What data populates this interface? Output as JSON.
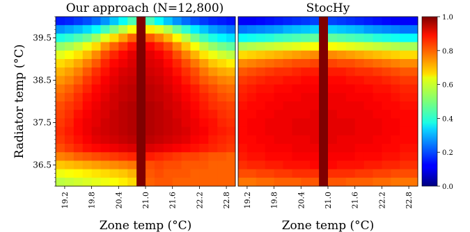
{
  "figure": {
    "shared_ylabel": "Radiator temp (°C)",
    "colorbar": {
      "range": [
        0.0,
        1.0
      ],
      "ticks": [
        "0.0",
        "0.2",
        "0.4",
        "0.6",
        "0.8",
        "1.0"
      ],
      "colormap": "jet"
    }
  },
  "chart_data": [
    {
      "type": "heatmap",
      "title": "Our approach (N=12,800)",
      "xlabel": "Zone temp (°C)",
      "ylabel": "Radiator temp (°C)",
      "x_tick_labels": [
        "19.2",
        "19.8",
        "20.4",
        "21.0",
        "21.6",
        "22.2",
        "22.8"
      ],
      "y_tick_labels": [
        "39.5",
        "38.5",
        "37.5",
        "36.5"
      ],
      "xlim": [
        19.0,
        23.0
      ],
      "ylim": [
        36.0,
        40.0
      ],
      "zlim": [
        0.0,
        1.0
      ],
      "grid_rows": 20,
      "grid_cols": 20,
      "highlight_column_x": 21.0,
      "highlight_column_value": 1.0,
      "values": [
        [
          0.15,
          0.16,
          0.18,
          0.2,
          0.23,
          0.27,
          0.32,
          0.38,
          0.45,
          1.0,
          0.45,
          0.38,
          0.32,
          0.27,
          0.23,
          0.2,
          0.18,
          0.16,
          0.15,
          0.14
        ],
        [
          0.27,
          0.29,
          0.31,
          0.34,
          0.38,
          0.44,
          0.5,
          0.56,
          0.62,
          1.0,
          0.64,
          0.6,
          0.55,
          0.48,
          0.42,
          0.36,
          0.32,
          0.28,
          0.26,
          0.24
        ],
        [
          0.4,
          0.42,
          0.45,
          0.48,
          0.53,
          0.6,
          0.66,
          0.72,
          0.78,
          1.0,
          0.79,
          0.75,
          0.7,
          0.63,
          0.56,
          0.49,
          0.44,
          0.4,
          0.37,
          0.35
        ],
        [
          0.52,
          0.54,
          0.57,
          0.61,
          0.66,
          0.73,
          0.78,
          0.82,
          0.86,
          1.0,
          0.87,
          0.84,
          0.8,
          0.74,
          0.68,
          0.62,
          0.56,
          0.52,
          0.49,
          0.47
        ],
        [
          0.6,
          0.62,
          0.65,
          0.69,
          0.74,
          0.8,
          0.84,
          0.87,
          0.9,
          1.0,
          0.9,
          0.88,
          0.85,
          0.8,
          0.75,
          0.7,
          0.65,
          0.61,
          0.58,
          0.56
        ],
        [
          0.66,
          0.68,
          0.71,
          0.75,
          0.79,
          0.84,
          0.87,
          0.89,
          0.91,
          1.0,
          0.91,
          0.9,
          0.87,
          0.84,
          0.8,
          0.76,
          0.72,
          0.68,
          0.66,
          0.64
        ],
        [
          0.7,
          0.72,
          0.75,
          0.79,
          0.83,
          0.86,
          0.89,
          0.91,
          0.92,
          1.0,
          0.92,
          0.91,
          0.89,
          0.86,
          0.83,
          0.8,
          0.76,
          0.73,
          0.71,
          0.7
        ],
        [
          0.73,
          0.75,
          0.78,
          0.82,
          0.85,
          0.88,
          0.9,
          0.92,
          0.93,
          1.0,
          0.93,
          0.92,
          0.9,
          0.88,
          0.85,
          0.82,
          0.79,
          0.77,
          0.75,
          0.74
        ],
        [
          0.76,
          0.78,
          0.81,
          0.84,
          0.87,
          0.89,
          0.91,
          0.93,
          0.94,
          1.0,
          0.94,
          0.93,
          0.91,
          0.89,
          0.87,
          0.85,
          0.82,
          0.8,
          0.78,
          0.77
        ],
        [
          0.78,
          0.8,
          0.83,
          0.86,
          0.88,
          0.9,
          0.92,
          0.93,
          0.94,
          1.0,
          0.94,
          0.93,
          0.92,
          0.9,
          0.88,
          0.86,
          0.84,
          0.82,
          0.8,
          0.79
        ],
        [
          0.8,
          0.82,
          0.84,
          0.87,
          0.89,
          0.91,
          0.92,
          0.94,
          0.95,
          1.0,
          0.95,
          0.94,
          0.92,
          0.91,
          0.89,
          0.87,
          0.85,
          0.83,
          0.82,
          0.81
        ],
        [
          0.81,
          0.83,
          0.86,
          0.88,
          0.9,
          0.91,
          0.93,
          0.94,
          0.95,
          1.0,
          0.95,
          0.94,
          0.93,
          0.91,
          0.9,
          0.88,
          0.86,
          0.85,
          0.83,
          0.82
        ],
        [
          0.82,
          0.84,
          0.87,
          0.89,
          0.9,
          0.92,
          0.93,
          0.94,
          0.95,
          1.0,
          0.95,
          0.94,
          0.93,
          0.92,
          0.9,
          0.89,
          0.87,
          0.86,
          0.84,
          0.83
        ],
        [
          0.83,
          0.85,
          0.87,
          0.89,
          0.91,
          0.92,
          0.93,
          0.94,
          0.95,
          1.0,
          0.95,
          0.94,
          0.93,
          0.92,
          0.91,
          0.89,
          0.88,
          0.86,
          0.85,
          0.84
        ],
        [
          0.82,
          0.84,
          0.86,
          0.88,
          0.9,
          0.91,
          0.92,
          0.93,
          0.94,
          1.0,
          0.94,
          0.93,
          0.92,
          0.91,
          0.9,
          0.88,
          0.87,
          0.85,
          0.84,
          0.83
        ],
        [
          0.8,
          0.82,
          0.84,
          0.86,
          0.87,
          0.88,
          0.89,
          0.9,
          0.91,
          1.0,
          0.91,
          0.9,
          0.89,
          0.88,
          0.87,
          0.86,
          0.85,
          0.84,
          0.83,
          0.82
        ],
        [
          0.75,
          0.76,
          0.78,
          0.79,
          0.8,
          0.81,
          0.82,
          0.83,
          0.84,
          1.0,
          0.85,
          0.84,
          0.83,
          0.82,
          0.81,
          0.81,
          0.8,
          0.79,
          0.79,
          0.78
        ],
        [
          0.68,
          0.69,
          0.7,
          0.71,
          0.72,
          0.73,
          0.74,
          0.75,
          0.76,
          1.0,
          0.8,
          0.81,
          0.8,
          0.8,
          0.79,
          0.79,
          0.79,
          0.78,
          0.78,
          0.78
        ],
        [
          0.61,
          0.62,
          0.63,
          0.64,
          0.65,
          0.66,
          0.67,
          0.68,
          0.7,
          1.0,
          0.79,
          0.8,
          0.79,
          0.79,
          0.79,
          0.78,
          0.78,
          0.78,
          0.78,
          0.78
        ],
        [
          0.56,
          0.57,
          0.58,
          0.59,
          0.6,
          0.61,
          0.62,
          0.64,
          0.66,
          1.0,
          0.78,
          0.79,
          0.79,
          0.78,
          0.78,
          0.78,
          0.78,
          0.78,
          0.78,
          0.78
        ]
      ]
    },
    {
      "type": "heatmap",
      "title": "StocHy",
      "xlabel": "Zone temp (°C)",
      "ylabel": "",
      "x_tick_labels": [
        "19.2",
        "19.8",
        "20.4",
        "21.0",
        "21.6",
        "22.2",
        "22.8"
      ],
      "y_tick_labels": [],
      "xlim": [
        19.0,
        23.0
      ],
      "ylim": [
        36.0,
        40.0
      ],
      "zlim": [
        0.0,
        1.0
      ],
      "grid_rows": 20,
      "grid_cols": 20,
      "highlight_column_x": 21.0,
      "highlight_column_value": 1.0,
      "values": [
        [
          0.12,
          0.12,
          0.13,
          0.14,
          0.15,
          0.16,
          0.17,
          0.18,
          0.19,
          1.0,
          0.19,
          0.18,
          0.17,
          0.16,
          0.15,
          0.14,
          0.13,
          0.12,
          0.12,
          0.12
        ],
        [
          0.24,
          0.25,
          0.26,
          0.27,
          0.28,
          0.3,
          0.31,
          0.32,
          0.33,
          1.0,
          0.33,
          0.32,
          0.31,
          0.3,
          0.28,
          0.27,
          0.26,
          0.25,
          0.24,
          0.24
        ],
        [
          0.38,
          0.39,
          0.4,
          0.41,
          0.43,
          0.44,
          0.45,
          0.46,
          0.47,
          1.0,
          0.47,
          0.46,
          0.45,
          0.44,
          0.43,
          0.41,
          0.4,
          0.39,
          0.38,
          0.38
        ],
        [
          0.54,
          0.55,
          0.56,
          0.57,
          0.58,
          0.59,
          0.6,
          0.61,
          0.62,
          1.0,
          0.62,
          0.61,
          0.6,
          0.59,
          0.58,
          0.57,
          0.56,
          0.55,
          0.54,
          0.54
        ],
        [
          0.66,
          0.67,
          0.68,
          0.69,
          0.7,
          0.71,
          0.72,
          0.73,
          0.74,
          1.0,
          0.74,
          0.73,
          0.72,
          0.71,
          0.7,
          0.69,
          0.68,
          0.67,
          0.66,
          0.66
        ],
        [
          0.74,
          0.75,
          0.76,
          0.77,
          0.78,
          0.79,
          0.8,
          0.8,
          0.81,
          1.0,
          0.81,
          0.8,
          0.8,
          0.79,
          0.78,
          0.77,
          0.76,
          0.75,
          0.74,
          0.74
        ],
        [
          0.79,
          0.8,
          0.81,
          0.82,
          0.83,
          0.83,
          0.84,
          0.85,
          0.85,
          1.0,
          0.85,
          0.85,
          0.84,
          0.83,
          0.83,
          0.82,
          0.81,
          0.8,
          0.79,
          0.79
        ],
        [
          0.82,
          0.83,
          0.84,
          0.85,
          0.85,
          0.86,
          0.86,
          0.87,
          0.87,
          1.0,
          0.87,
          0.87,
          0.86,
          0.86,
          0.85,
          0.85,
          0.84,
          0.83,
          0.82,
          0.82
        ],
        [
          0.84,
          0.85,
          0.86,
          0.86,
          0.87,
          0.87,
          0.88,
          0.88,
          0.88,
          1.0,
          0.88,
          0.88,
          0.88,
          0.87,
          0.87,
          0.86,
          0.86,
          0.85,
          0.84,
          0.84
        ],
        [
          0.85,
          0.86,
          0.87,
          0.87,
          0.88,
          0.88,
          0.88,
          0.89,
          0.89,
          1.0,
          0.89,
          0.89,
          0.88,
          0.88,
          0.88,
          0.87,
          0.87,
          0.86,
          0.85,
          0.85
        ],
        [
          0.86,
          0.87,
          0.87,
          0.88,
          0.88,
          0.89,
          0.89,
          0.89,
          0.89,
          1.0,
          0.89,
          0.89,
          0.89,
          0.89,
          0.88,
          0.88,
          0.87,
          0.87,
          0.86,
          0.86
        ],
        [
          0.87,
          0.87,
          0.88,
          0.88,
          0.89,
          0.89,
          0.89,
          0.89,
          0.9,
          1.0,
          0.9,
          0.89,
          0.89,
          0.89,
          0.89,
          0.88,
          0.88,
          0.87,
          0.87,
          0.87
        ],
        [
          0.87,
          0.88,
          0.88,
          0.89,
          0.89,
          0.89,
          0.9,
          0.9,
          0.9,
          1.0,
          0.9,
          0.9,
          0.9,
          0.89,
          0.89,
          0.89,
          0.88,
          0.88,
          0.87,
          0.87
        ],
        [
          0.87,
          0.88,
          0.88,
          0.89,
          0.89,
          0.89,
          0.9,
          0.9,
          0.9,
          1.0,
          0.9,
          0.9,
          0.9,
          0.89,
          0.89,
          0.89,
          0.88,
          0.88,
          0.87,
          0.87
        ],
        [
          0.87,
          0.87,
          0.88,
          0.88,
          0.89,
          0.89,
          0.89,
          0.89,
          0.9,
          1.0,
          0.9,
          0.89,
          0.89,
          0.89,
          0.89,
          0.88,
          0.88,
          0.87,
          0.87,
          0.87
        ],
        [
          0.86,
          0.87,
          0.87,
          0.88,
          0.88,
          0.88,
          0.89,
          0.89,
          0.89,
          1.0,
          0.89,
          0.89,
          0.89,
          0.88,
          0.88,
          0.88,
          0.87,
          0.87,
          0.86,
          0.86
        ],
        [
          0.85,
          0.86,
          0.86,
          0.87,
          0.87,
          0.87,
          0.88,
          0.88,
          0.88,
          1.0,
          0.88,
          0.88,
          0.88,
          0.87,
          0.87,
          0.87,
          0.86,
          0.86,
          0.85,
          0.85
        ],
        [
          0.83,
          0.84,
          0.84,
          0.85,
          0.85,
          0.86,
          0.86,
          0.86,
          0.87,
          1.0,
          0.87,
          0.86,
          0.86,
          0.86,
          0.85,
          0.85,
          0.84,
          0.84,
          0.83,
          0.83
        ],
        [
          0.8,
          0.8,
          0.81,
          0.81,
          0.82,
          0.82,
          0.83,
          0.83,
          0.83,
          1.0,
          0.83,
          0.83,
          0.83,
          0.82,
          0.82,
          0.81,
          0.81,
          0.8,
          0.8,
          0.8
        ],
        [
          0.76,
          0.76,
          0.77,
          0.77,
          0.78,
          0.78,
          0.78,
          0.79,
          0.79,
          1.0,
          0.79,
          0.79,
          0.78,
          0.78,
          0.78,
          0.77,
          0.77,
          0.76,
          0.76,
          0.76
        ]
      ]
    }
  ]
}
